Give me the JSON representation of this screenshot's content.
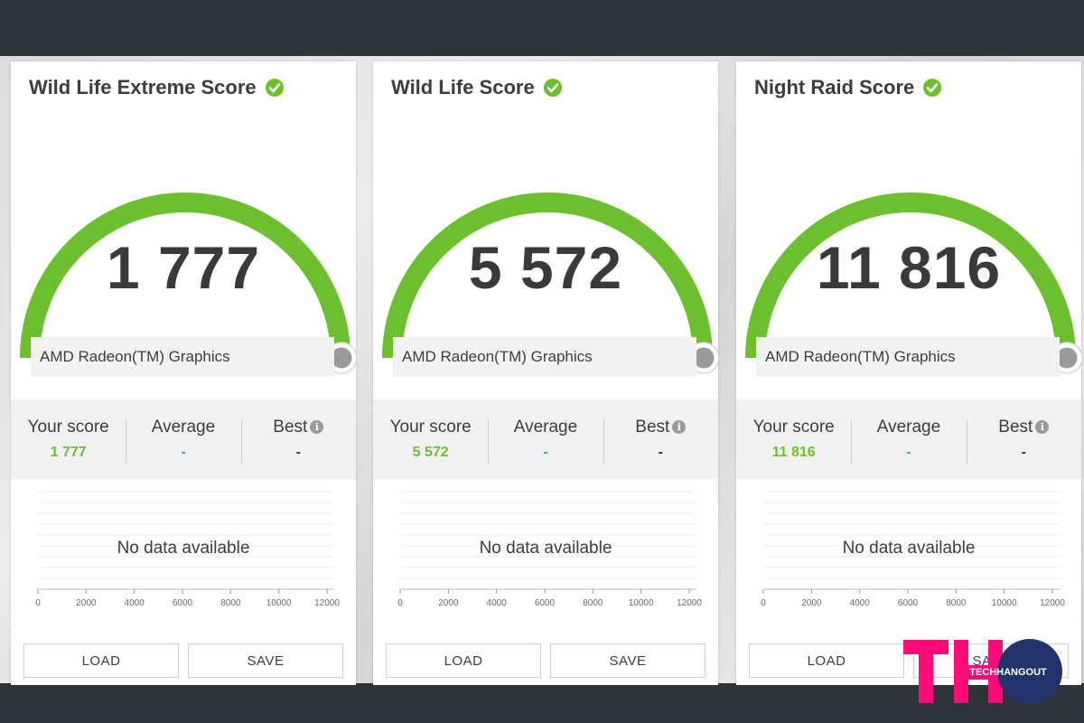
{
  "cards": [
    {
      "title": "Wild Life Extreme Score",
      "score": "1 777",
      "gpu": "AMD Radeon(TM) Graphics",
      "stats": {
        "your_score_label": "Your score",
        "your_score_value": "1 777",
        "average_label": "Average",
        "average_value": "-",
        "best_label": "Best",
        "best_value": "-"
      },
      "chart": {
        "no_data": "No data available",
        "ticks": [
          "0",
          "2000",
          "4000",
          "6000",
          "8000",
          "10000",
          "12000"
        ]
      },
      "load_label": "LOAD",
      "save_label": "SAVE",
      "gauge_fill_fraction": 1.0
    },
    {
      "title": "Wild Life Score",
      "score": "5 572",
      "gpu": "AMD Radeon(TM) Graphics",
      "stats": {
        "your_score_label": "Your score",
        "your_score_value": "5 572",
        "average_label": "Average",
        "average_value": "-",
        "best_label": "Best",
        "best_value": "-"
      },
      "chart": {
        "no_data": "No data available",
        "ticks": [
          "0",
          "2000",
          "4000",
          "6000",
          "8000",
          "10000",
          "12000"
        ]
      },
      "load_label": "LOAD",
      "save_label": "SAVE",
      "gauge_fill_fraction": 1.0
    },
    {
      "title": "Night Raid Score",
      "score": "11 816",
      "gpu": "AMD Radeon(TM) Graphics",
      "stats": {
        "your_score_label": "Your score",
        "your_score_value": "11 816",
        "average_label": "Average",
        "average_value": "-",
        "best_label": "Best",
        "best_value": "-"
      },
      "chart": {
        "no_data": "No data available",
        "ticks": [
          "0",
          "2000",
          "4000",
          "6000",
          "8000",
          "10000",
          "12000"
        ]
      },
      "load_label": "LOAD",
      "save_label": "SAVE",
      "gauge_fill_fraction": 1.0
    }
  ],
  "watermark": {
    "letters": "TH",
    "text": "TECHHANGOUT"
  },
  "colors": {
    "gauge_green": "#6cc02e",
    "your_score_green": "#6cc02e",
    "average_blue": "#3aa2e0",
    "logo_pink": "#ff0a78",
    "logo_navy": "#23336b",
    "background_dark": "#2e3438"
  },
  "icons": {
    "title_check": "check-circle-icon",
    "best_info": "info-icon",
    "gauge_end": "gauge-knob-icon"
  }
}
